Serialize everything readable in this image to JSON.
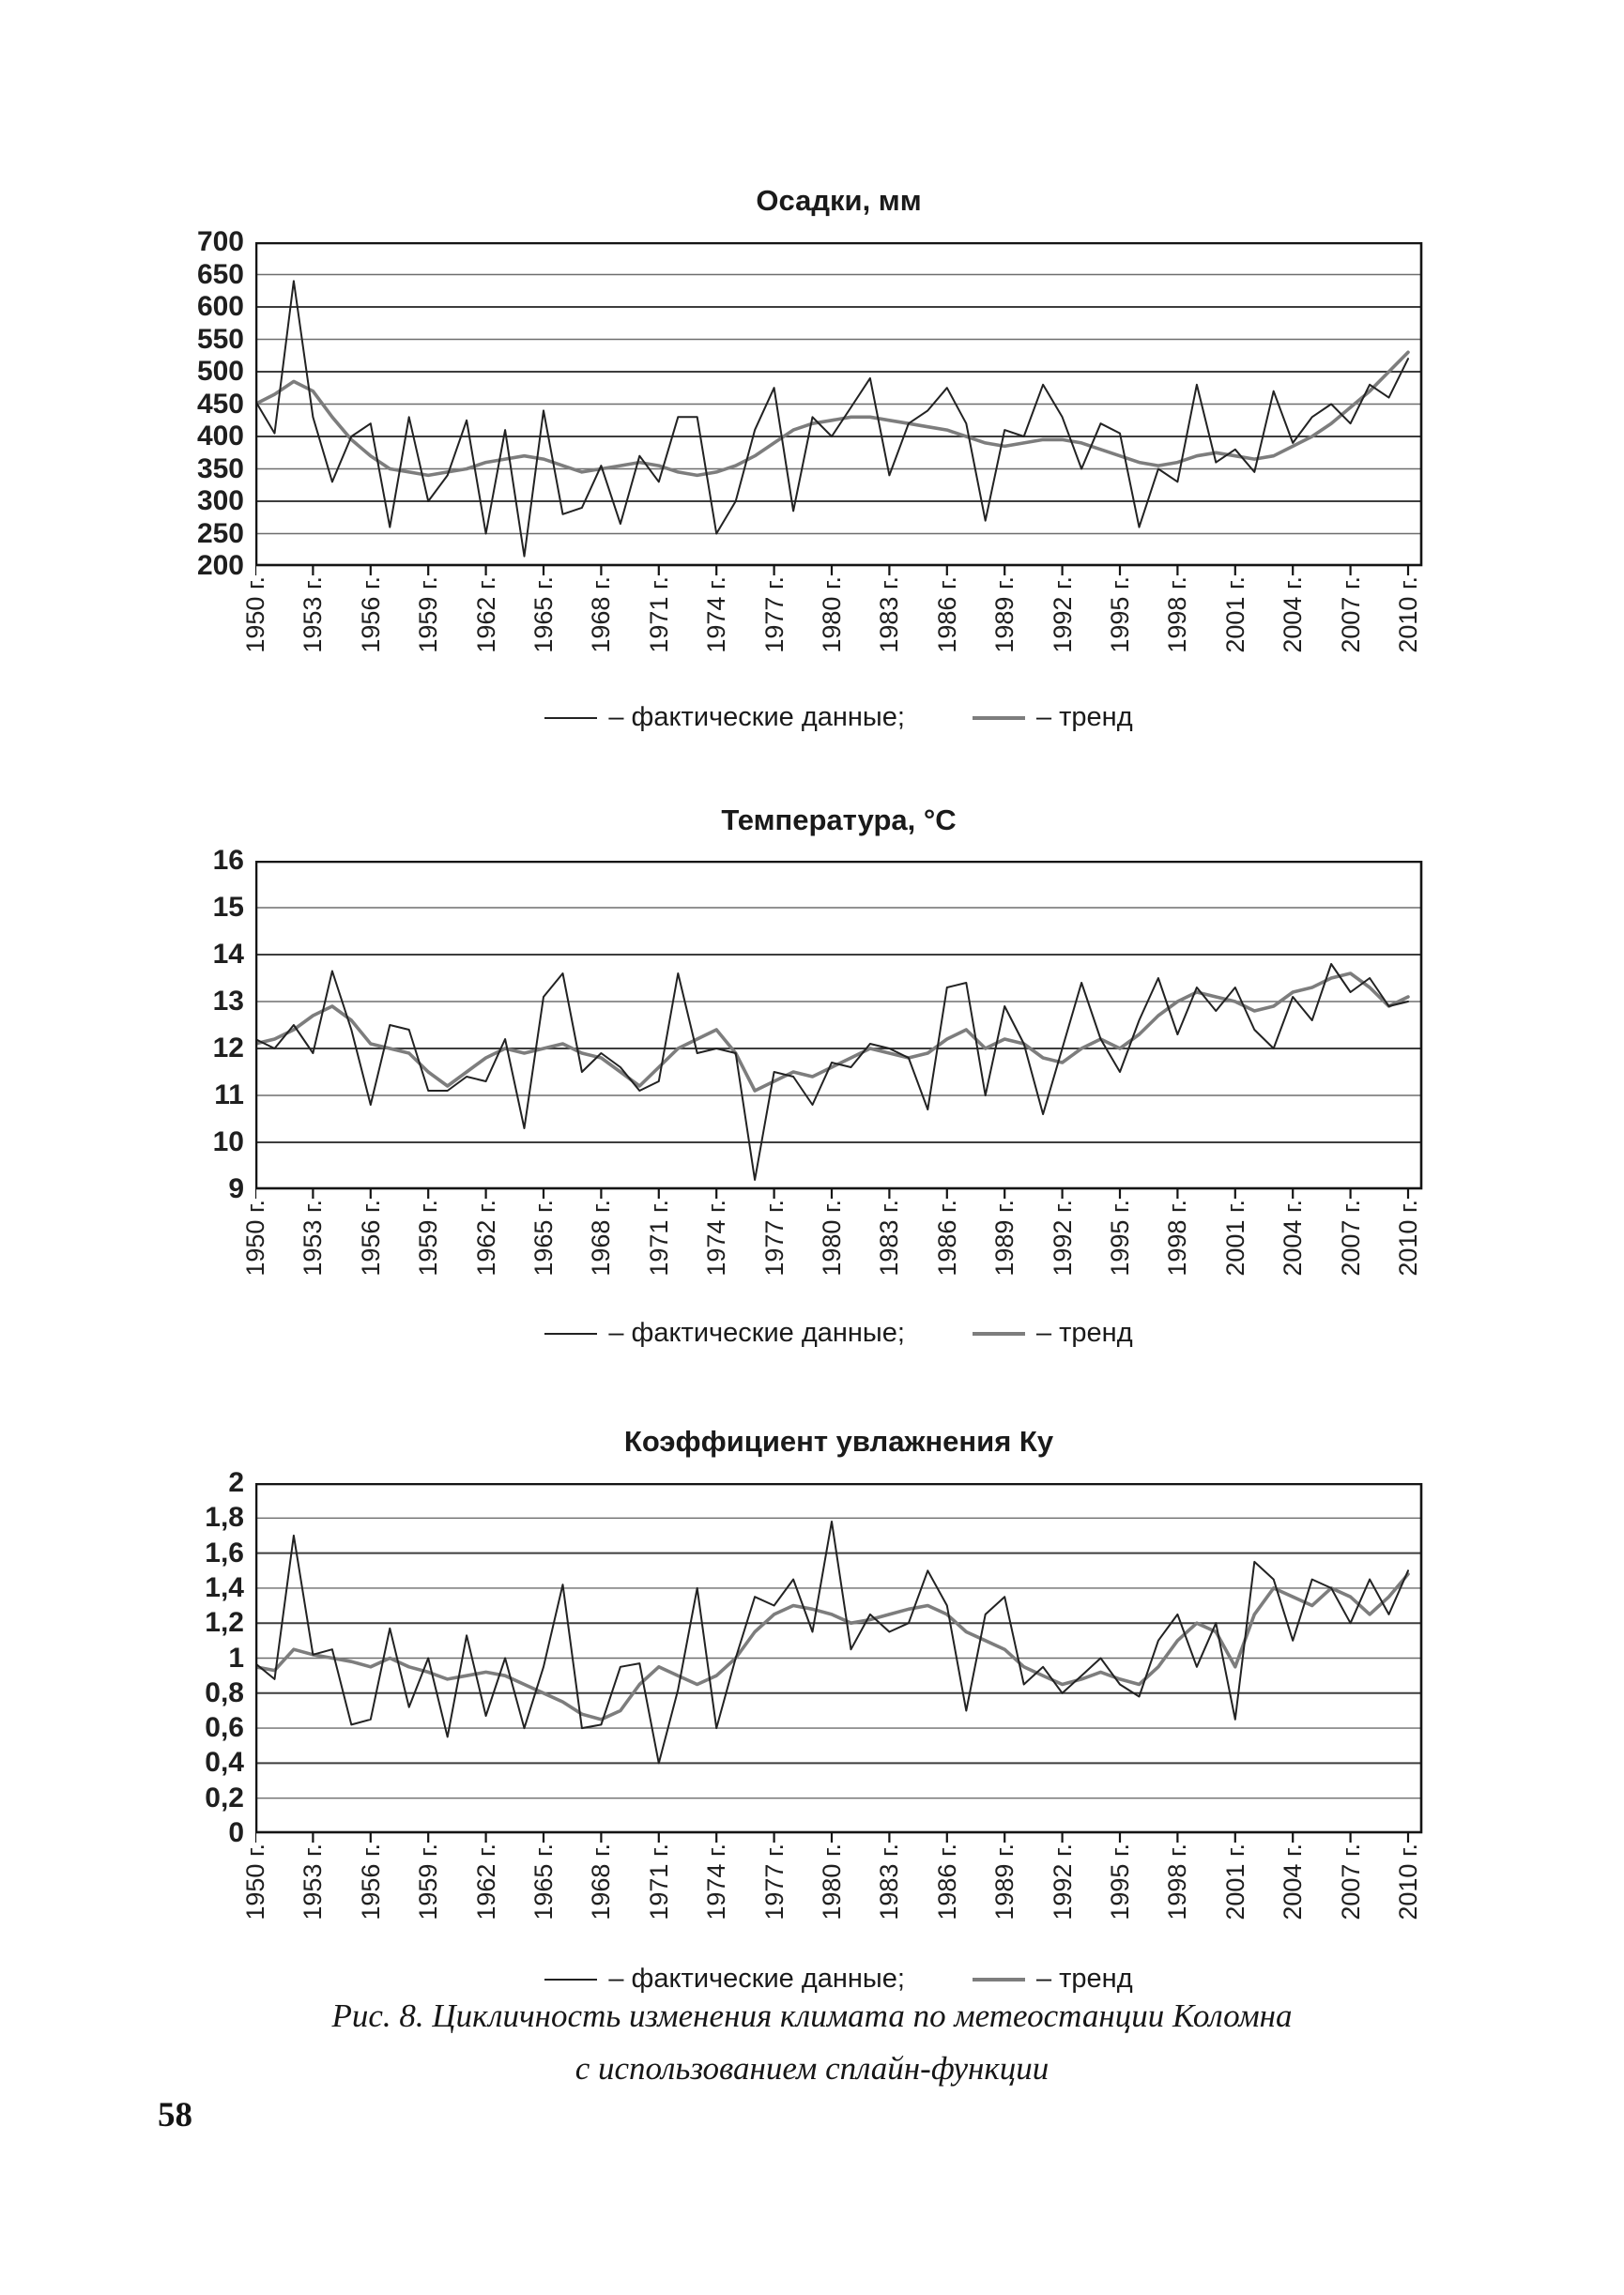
{
  "page": {
    "number": "58"
  },
  "caption": {
    "line1": "Рис. 8. Цикличность изменения климата по метеостанции Коломна",
    "line2": "с использованием сплайн-функции"
  },
  "legend": {
    "actual": "– фактические данные;",
    "trend": "– тренд"
  },
  "chart_data": [
    {
      "type": "line",
      "title": "Осадки, мм",
      "ylabel": "Осадки, мм",
      "ylim": [
        200,
        700
      ],
      "ytick_step": 50,
      "grid": true,
      "legend_position": "bottom",
      "ylabels": [
        "700",
        "650",
        "600",
        "550",
        "500",
        "450",
        "400",
        "350",
        "300",
        "250",
        "200"
      ],
      "x_tick_labels": [
        "1950 г.",
        "1953 г.",
        "1956 г.",
        "1959 г.",
        "1962 г.",
        "1965 г.",
        "1968 г.",
        "1971 г.",
        "1974 г.",
        "1977 г.",
        "1980 г.",
        "1983 г.",
        "1986 г.",
        "1989 г.",
        "1992 г.",
        "1995 г.",
        "1998 г.",
        "2001 г.",
        "2004 г.",
        "2007 г.",
        "2010 г."
      ],
      "x": [
        1950,
        1951,
        1952,
        1953,
        1954,
        1955,
        1956,
        1957,
        1958,
        1959,
        1960,
        1961,
        1962,
        1963,
        1964,
        1965,
        1966,
        1967,
        1968,
        1969,
        1970,
        1971,
        1972,
        1973,
        1974,
        1975,
        1976,
        1977,
        1978,
        1979,
        1980,
        1981,
        1982,
        1983,
        1984,
        1985,
        1986,
        1987,
        1988,
        1989,
        1990,
        1991,
        1992,
        1993,
        1994,
        1995,
        1996,
        1997,
        1998,
        1999,
        2000,
        2001,
        2002,
        2003,
        2004,
        2005,
        2006,
        2007,
        2008,
        2009,
        2010
      ],
      "series": [
        {
          "name": "фактические данные",
          "values": [
            455,
            405,
            640,
            430,
            330,
            400,
            420,
            260,
            430,
            300,
            340,
            425,
            250,
            410,
            215,
            440,
            280,
            290,
            355,
            265,
            370,
            330,
            430,
            430,
            250,
            300,
            410,
            475,
            285,
            430,
            400,
            445,
            490,
            340,
            420,
            440,
            475,
            420,
            270,
            410,
            400,
            480,
            430,
            350,
            420,
            405,
            260,
            350,
            330,
            480,
            360,
            380,
            345,
            470,
            390,
            430,
            450,
            420,
            480,
            460,
            520
          ]
        },
        {
          "name": "тренд",
          "values": [
            450,
            465,
            485,
            470,
            430,
            395,
            370,
            350,
            345,
            340,
            345,
            350,
            360,
            365,
            370,
            365,
            355,
            345,
            350,
            355,
            360,
            355,
            345,
            340,
            345,
            355,
            370,
            390,
            410,
            420,
            425,
            430,
            430,
            425,
            420,
            415,
            410,
            400,
            390,
            385,
            390,
            395,
            395,
            390,
            380,
            370,
            360,
            355,
            360,
            370,
            375,
            370,
            365,
            370,
            385,
            400,
            420,
            445,
            470,
            500,
            530
          ]
        }
      ]
    },
    {
      "type": "line",
      "title": "Температура, °С",
      "ylabel": "Температура, °С",
      "ylim": [
        9,
        16
      ],
      "ytick_step": 1,
      "grid": true,
      "legend_position": "bottom",
      "ylabels": [
        "16",
        "15",
        "14",
        "13",
        "12",
        "11",
        "10",
        "9"
      ],
      "x_tick_labels": [
        "1950 г.",
        "1953 г.",
        "1956 г.",
        "1959 г.",
        "1962 г.",
        "1965 г.",
        "1968 г.",
        "1971 г.",
        "1974 г.",
        "1977 г.",
        "1980 г.",
        "1983 г.",
        "1986 г.",
        "1989 г.",
        "1992 г.",
        "1995 г.",
        "1998 г.",
        "2001 г.",
        "2004 г.",
        "2007 г.",
        "2010 г."
      ],
      "x": [
        1950,
        1951,
        1952,
        1953,
        1954,
        1955,
        1956,
        1957,
        1958,
        1959,
        1960,
        1961,
        1962,
        1963,
        1964,
        1965,
        1966,
        1967,
        1968,
        1969,
        1970,
        1971,
        1972,
        1973,
        1974,
        1975,
        1976,
        1977,
        1978,
        1979,
        1980,
        1981,
        1982,
        1983,
        1984,
        1985,
        1986,
        1987,
        1988,
        1989,
        1990,
        1991,
        1992,
        1993,
        1994,
        1995,
        1996,
        1997,
        1998,
        1999,
        2000,
        2001,
        2002,
        2003,
        2004,
        2005,
        2006,
        2007,
        2008,
        2009,
        2010
      ],
      "series": [
        {
          "name": "фактические данные",
          "values": [
            12.2,
            12.0,
            12.5,
            11.9,
            13.65,
            12.4,
            10.8,
            12.5,
            12.4,
            11.1,
            11.1,
            11.4,
            11.3,
            12.2,
            10.3,
            13.1,
            13.6,
            11.5,
            11.9,
            11.6,
            11.1,
            11.3,
            13.6,
            11.9,
            12.0,
            11.9,
            9.2,
            11.5,
            11.4,
            10.8,
            11.7,
            11.6,
            12.1,
            12.0,
            11.8,
            10.7,
            13.3,
            13.4,
            11.0,
            12.9,
            12.1,
            10.6,
            12.0,
            13.4,
            12.2,
            11.5,
            12.6,
            13.5,
            12.3,
            13.3,
            12.8,
            13.3,
            12.4,
            12.0,
            13.1,
            12.6,
            13.8,
            13.2,
            13.5,
            12.9,
            13.0
          ]
        },
        {
          "name": "тренд",
          "values": [
            12.1,
            12.2,
            12.4,
            12.7,
            12.9,
            12.6,
            12.1,
            12.0,
            11.9,
            11.5,
            11.2,
            11.5,
            11.8,
            12.0,
            11.9,
            12.0,
            12.1,
            11.9,
            11.8,
            11.5,
            11.2,
            11.6,
            12.0,
            12.2,
            12.4,
            11.9,
            11.1,
            11.3,
            11.5,
            11.4,
            11.6,
            11.8,
            12.0,
            11.9,
            11.8,
            11.9,
            12.2,
            12.4,
            12.0,
            12.2,
            12.1,
            11.8,
            11.7,
            12.0,
            12.2,
            12.0,
            12.3,
            12.7,
            13.0,
            13.2,
            13.1,
            13.0,
            12.8,
            12.9,
            13.2,
            13.3,
            13.5,
            13.6,
            13.3,
            12.9,
            13.1
          ]
        }
      ]
    },
    {
      "type": "line",
      "title": "Коэффициент увлажнения Ку",
      "ylabel": "Коэффициент увлажнения Ку",
      "ylim": [
        0,
        2
      ],
      "ytick_step": 0.2,
      "grid": true,
      "legend_position": "bottom",
      "ylabels": [
        "2",
        "1,8",
        "1,6",
        "1,4",
        "1,2",
        "1",
        "0,8",
        "0,6",
        "0,4",
        "0,2",
        "0"
      ],
      "x_tick_labels": [
        "1950 г.",
        "1953 г.",
        "1956 г.",
        "1959 г.",
        "1962 г.",
        "1965 г.",
        "1968 г.",
        "1971 г.",
        "1974 г.",
        "1977 г.",
        "1980 г.",
        "1983 г.",
        "1986 г.",
        "1989 г.",
        "1992 г.",
        "1995 г.",
        "1998 г.",
        "2001 г.",
        "2004 г.",
        "2007 г.",
        "2010 г."
      ],
      "x": [
        1950,
        1951,
        1952,
        1953,
        1954,
        1955,
        1956,
        1957,
        1958,
        1959,
        1960,
        1961,
        1962,
        1963,
        1964,
        1965,
        1966,
        1967,
        1968,
        1969,
        1970,
        1971,
        1972,
        1973,
        1974,
        1975,
        1976,
        1977,
        1978,
        1979,
        1980,
        1981,
        1982,
        1983,
        1984,
        1985,
        1986,
        1987,
        1988,
        1989,
        1990,
        1991,
        1992,
        1993,
        1994,
        1995,
        1996,
        1997,
        1998,
        1999,
        2000,
        2001,
        2002,
        2003,
        2004,
        2005,
        2006,
        2007,
        2008,
        2009,
        2010
      ],
      "series": [
        {
          "name": "фактические данные",
          "values": [
            0.97,
            0.88,
            1.7,
            1.02,
            1.05,
            0.62,
            0.65,
            1.17,
            0.72,
            1.0,
            0.55,
            1.13,
            0.67,
            1.0,
            0.6,
            0.95,
            1.42,
            0.6,
            0.62,
            0.95,
            0.97,
            0.4,
            0.82,
            1.4,
            0.6,
            1.0,
            1.35,
            1.3,
            1.45,
            1.15,
            1.78,
            1.05,
            1.25,
            1.15,
            1.2,
            1.5,
            1.3,
            0.7,
            1.25,
            1.35,
            0.85,
            0.95,
            0.8,
            0.9,
            1.0,
            0.85,
            0.78,
            1.1,
            1.25,
            0.95,
            1.2,
            0.65,
            1.55,
            1.45,
            1.1,
            1.45,
            1.4,
            1.2,
            1.45,
            1.25,
            1.5
          ]
        },
        {
          "name": "тренд",
          "values": [
            0.95,
            0.93,
            1.05,
            1.02,
            1.0,
            0.98,
            0.95,
            1.0,
            0.95,
            0.92,
            0.88,
            0.9,
            0.92,
            0.9,
            0.85,
            0.8,
            0.75,
            0.68,
            0.65,
            0.7,
            0.85,
            0.95,
            0.9,
            0.85,
            0.9,
            1.0,
            1.15,
            1.25,
            1.3,
            1.28,
            1.25,
            1.2,
            1.22,
            1.25,
            1.28,
            1.3,
            1.25,
            1.15,
            1.1,
            1.05,
            0.95,
            0.9,
            0.85,
            0.88,
            0.92,
            0.88,
            0.85,
            0.95,
            1.1,
            1.2,
            1.15,
            0.95,
            1.25,
            1.4,
            1.35,
            1.3,
            1.4,
            1.35,
            1.25,
            1.35,
            1.48
          ]
        }
      ]
    }
  ],
  "colors": {
    "actual_line": "#222222",
    "trend_line": "#7d7d7d",
    "grid_line": "#6e6e6e",
    "border": "#141414"
  }
}
